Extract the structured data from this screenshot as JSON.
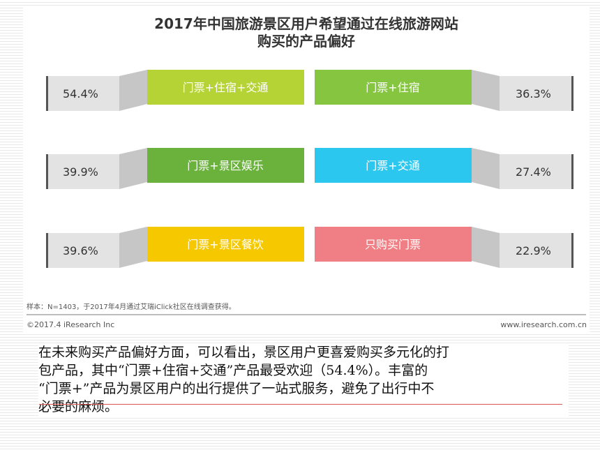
{
  "chart_data": {
    "type": "table",
    "title": "2017年中国旅游景区用户希望通过在线旅游网站购买的产品偏好",
    "title_lines": [
      "2017年中国旅游景区用户希望通过在线旅游网站",
      "购买的产品偏好"
    ],
    "unit": "%",
    "rows": [
      {
        "left": {
          "label": "门票+住宿+交通",
          "value": "54.4%",
          "color": "#b5d334"
        },
        "right": {
          "label": "门票+住宿",
          "value": "36.3%",
          "color": "#86c540"
        }
      },
      {
        "left": {
          "label": "门票+景区娱乐",
          "value": "39.9%",
          "color": "#6ab23c"
        },
        "right": {
          "label": "门票+交通",
          "value": "27.4%",
          "color": "#2cc7ef"
        }
      },
      {
        "left": {
          "label": "门票+景区餐饮",
          "value": "39.6%",
          "color": "#f6c800"
        },
        "right": {
          "label": "只购买门票",
          "value": "22.9%",
          "color": "#ef7f84"
        }
      }
    ]
  },
  "footer": {
    "note": "样本：N=1403，于2017年4月通过艾瑞iClick社区在线调查获得。",
    "copyright": "©2017.4 iResearch Inc",
    "website": "www.iresearch.com.cn"
  },
  "caption": {
    "lines": [
      "在未来购买产品偏好方面，可以看出，景区用户更喜爱购买多元化的打",
      "包产品，其中“门票+住宿+交通”产品最受欢迎（54.4%）。丰富的",
      "“门票+”产品为景区用户的出行提供了一站式服务，避免了出行中不",
      "必要的麻烦。"
    ]
  },
  "colors": {
    "gray_block": "#e3e3e3",
    "gray_shadow": "#c6c6c6",
    "edge_dark": "#555555"
  }
}
